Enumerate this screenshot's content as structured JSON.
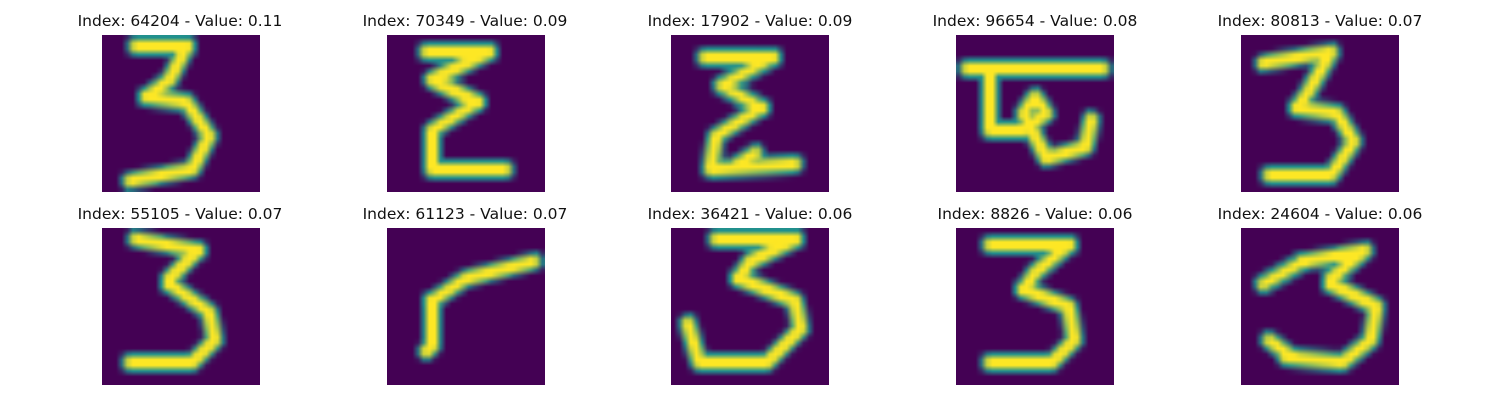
{
  "colors": {
    "background_low": "#440154",
    "mid_teal": "#21908d",
    "high_yellow": "#fde725"
  },
  "panels": [
    {
      "title": "Index: 64204 - Value: 0.11"
    },
    {
      "title": "Index: 70349 - Value: 0.09"
    },
    {
      "title": "Index: 17902 - Value: 0.09"
    },
    {
      "title": "Index: 96654 - Value: 0.08"
    },
    {
      "title": "Index: 80813 - Value: 0.07"
    },
    {
      "title": "Index: 55105 - Value: 0.07"
    },
    {
      "title": "Index: 61123 - Value: 0.07"
    },
    {
      "title": "Index: 36421 - Value: 0.06"
    },
    {
      "title": "Index: 8826 - Value: 0.06"
    },
    {
      "title": "Index: 24604 - Value: 0.06"
    }
  ]
}
